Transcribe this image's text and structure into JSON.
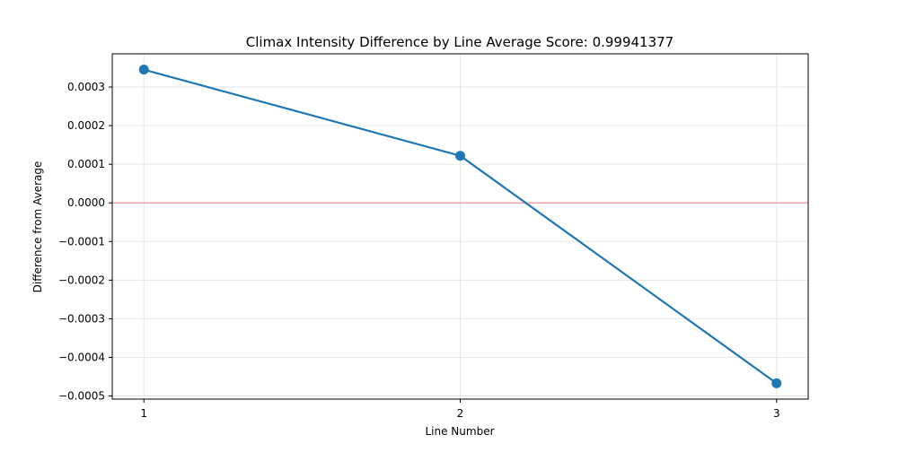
{
  "chart_data": {
    "type": "line",
    "title": "Climax Intensity Difference by Line Average Score: 0.99941377",
    "xlabel": "Line Number",
    "ylabel": "Difference from Average",
    "x": [
      1,
      2,
      3
    ],
    "series": [
      {
        "values": [
          0.000345,
          0.000122,
          -0.000467
        ],
        "color": "#1f77b4",
        "marker": "circle"
      }
    ],
    "reference_line": {
      "y": 0.0,
      "color": "#f4a6a6"
    },
    "xticks": [
      {
        "value": 1,
        "label": "1"
      },
      {
        "value": 2,
        "label": "2"
      },
      {
        "value": 3,
        "label": "3"
      }
    ],
    "yticks": [
      {
        "value": 0.0003,
        "label": "0.0003"
      },
      {
        "value": 0.0002,
        "label": "0.0002"
      },
      {
        "value": 0.0001,
        "label": "0.0001"
      },
      {
        "value": 0.0,
        "label": "0.0000"
      },
      {
        "value": -0.0001,
        "label": "−0.0001"
      },
      {
        "value": -0.0002,
        "label": "−0.0002"
      },
      {
        "value": -0.0003,
        "label": "−0.0003"
      },
      {
        "value": -0.0004,
        "label": "−0.0004"
      },
      {
        "value": -0.0005,
        "label": "−0.0005"
      }
    ],
    "xlim": [
      0.9,
      3.1
    ],
    "ylim": [
      -0.000508,
      0.000386
    ],
    "grid": true,
    "legend": false
  }
}
